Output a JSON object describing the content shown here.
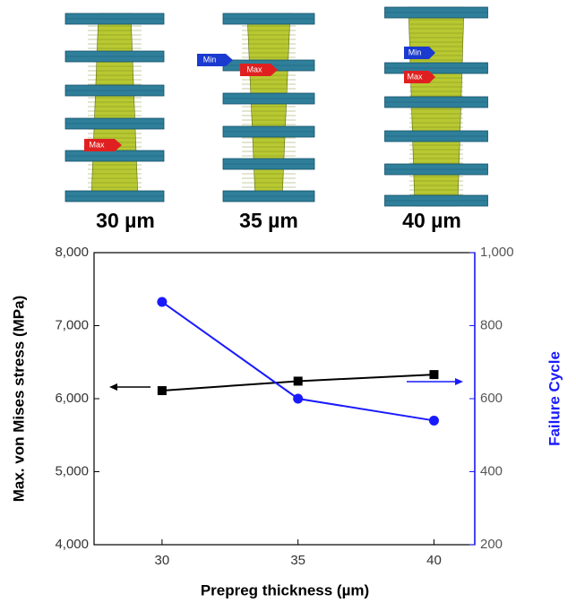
{
  "images": [
    {
      "label": "30 µm",
      "tags": [
        "Max"
      ]
    },
    {
      "label": "35 µm",
      "tags": [
        "Min",
        "Max"
      ]
    },
    {
      "label": "40 µm",
      "tags": [
        "Min",
        "Max"
      ]
    }
  ],
  "chart_data": {
    "type": "line",
    "x": [
      30,
      35,
      40
    ],
    "xlim": [
      27.5,
      41.5
    ],
    "xticks": [
      30,
      35,
      40
    ],
    "x_label": "Prepreg thickness (µm)",
    "y_label": "Max. von Mises stress (MPa)",
    "y2_label": "Failure Cycle",
    "ylim": [
      4000,
      8000
    ],
    "yticks": [
      {
        "value": 4000,
        "label": "4,000"
      },
      {
        "value": 5000,
        "label": "5,000"
      },
      {
        "value": 6000,
        "label": "6,000"
      },
      {
        "value": 7000,
        "label": "7,000"
      },
      {
        "value": 8000,
        "label": "8,000"
      }
    ],
    "y2lim": [
      200,
      1000
    ],
    "y2ticks": [
      200,
      400,
      600,
      800,
      {
        "value": 1000,
        "label": "1,000"
      }
    ],
    "series": [
      {
        "color": "#000000",
        "marker": "square",
        "values": [
          6110,
          6240,
          6330
        ]
      },
      {
        "color": "#1a1aff",
        "marker": "circle",
        "axis": "y2",
        "values": [
          865,
          600,
          540
        ]
      }
    ]
  }
}
